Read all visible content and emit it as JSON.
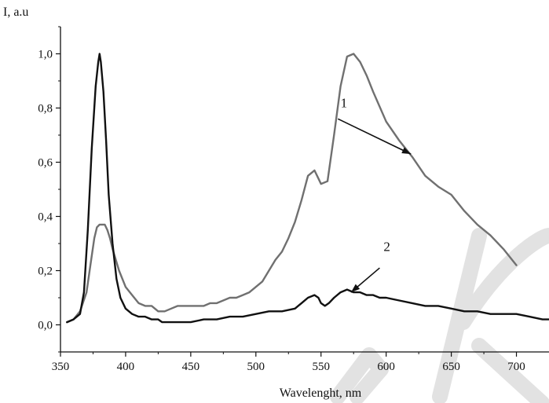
{
  "chart_data": {
    "type": "line",
    "title": "",
    "xlabel": "Wavelenght, nm",
    "ylabel": "I, a.u",
    "xlim": [
      350,
      725
    ],
    "ylim": [
      -0.1,
      1.1
    ],
    "xticks": [
      350,
      400,
      450,
      500,
      550,
      600,
      650,
      700
    ],
    "xtick_labels": [
      "350",
      "400",
      "450",
      "500",
      "550",
      "600",
      "650",
      "700"
    ],
    "yticks": [
      0.0,
      0.2,
      0.4,
      0.6,
      0.8,
      1.0
    ],
    "ytick_labels": [
      "0,0",
      "0,2",
      "0,4",
      "0,6",
      "0,8",
      "1,0"
    ],
    "grid": false,
    "series": [
      {
        "name": "1",
        "color": "#707070",
        "x": [
          355,
          360,
          365,
          370,
          373,
          376,
          378,
          380,
          382,
          384,
          386,
          388,
          390,
          395,
          400,
          405,
          410,
          415,
          420,
          425,
          430,
          435,
          440,
          450,
          460,
          465,
          470,
          480,
          485,
          490,
          495,
          500,
          505,
          510,
          515,
          520,
          525,
          530,
          535,
          540,
          545,
          548,
          550,
          555,
          560,
          565,
          570,
          575,
          580,
          585,
          590,
          600,
          610,
          620,
          630,
          640,
          650,
          660,
          670,
          680,
          690,
          700
        ],
        "y": [
          0.01,
          0.02,
          0.05,
          0.12,
          0.22,
          0.32,
          0.36,
          0.37,
          0.37,
          0.37,
          0.35,
          0.32,
          0.28,
          0.2,
          0.14,
          0.11,
          0.08,
          0.07,
          0.07,
          0.05,
          0.05,
          0.06,
          0.07,
          0.07,
          0.07,
          0.08,
          0.08,
          0.1,
          0.1,
          0.11,
          0.12,
          0.14,
          0.16,
          0.2,
          0.24,
          0.27,
          0.32,
          0.38,
          0.46,
          0.55,
          0.57,
          0.54,
          0.52,
          0.53,
          0.7,
          0.88,
          0.99,
          1.0,
          0.97,
          0.92,
          0.86,
          0.75,
          0.68,
          0.62,
          0.55,
          0.51,
          0.48,
          0.42,
          0.37,
          0.33,
          0.28,
          0.22
        ]
      },
      {
        "name": "2",
        "color": "#111111",
        "x": [
          355,
          360,
          365,
          368,
          371,
          374,
          377,
          379,
          380,
          381,
          383,
          385,
          387,
          390,
          393,
          396,
          400,
          405,
          410,
          415,
          420,
          425,
          428,
          430,
          435,
          440,
          450,
          460,
          470,
          480,
          490,
          500,
          510,
          520,
          530,
          535,
          540,
          545,
          548,
          550,
          553,
          556,
          560,
          565,
          570,
          575,
          580,
          585,
          590,
          595,
          600,
          610,
          620,
          630,
          640,
          650,
          660,
          670,
          680,
          690,
          700,
          710,
          720,
          725
        ],
        "y": [
          0.01,
          0.02,
          0.04,
          0.12,
          0.35,
          0.65,
          0.88,
          0.97,
          1.0,
          0.97,
          0.86,
          0.68,
          0.48,
          0.3,
          0.17,
          0.1,
          0.06,
          0.04,
          0.03,
          0.03,
          0.02,
          0.02,
          0.01,
          0.01,
          0.01,
          0.01,
          0.01,
          0.02,
          0.02,
          0.03,
          0.03,
          0.04,
          0.05,
          0.05,
          0.06,
          0.08,
          0.1,
          0.11,
          0.1,
          0.08,
          0.07,
          0.08,
          0.1,
          0.12,
          0.13,
          0.12,
          0.12,
          0.11,
          0.11,
          0.1,
          0.1,
          0.09,
          0.08,
          0.07,
          0.07,
          0.06,
          0.05,
          0.05,
          0.04,
          0.04,
          0.04,
          0.03,
          0.02,
          0.02
        ]
      }
    ],
    "annotations": [
      {
        "label": "1",
        "text_at": [
          565,
          0.78
        ],
        "arrow_from": [
          563,
          0.76
        ],
        "arrow_to": [
          619,
          0.63
        ]
      },
      {
        "label": "2",
        "text_at": [
          598,
          0.25
        ],
        "arrow_from": [
          595,
          0.21
        ],
        "arrow_to": [
          573,
          0.12
        ]
      }
    ]
  }
}
